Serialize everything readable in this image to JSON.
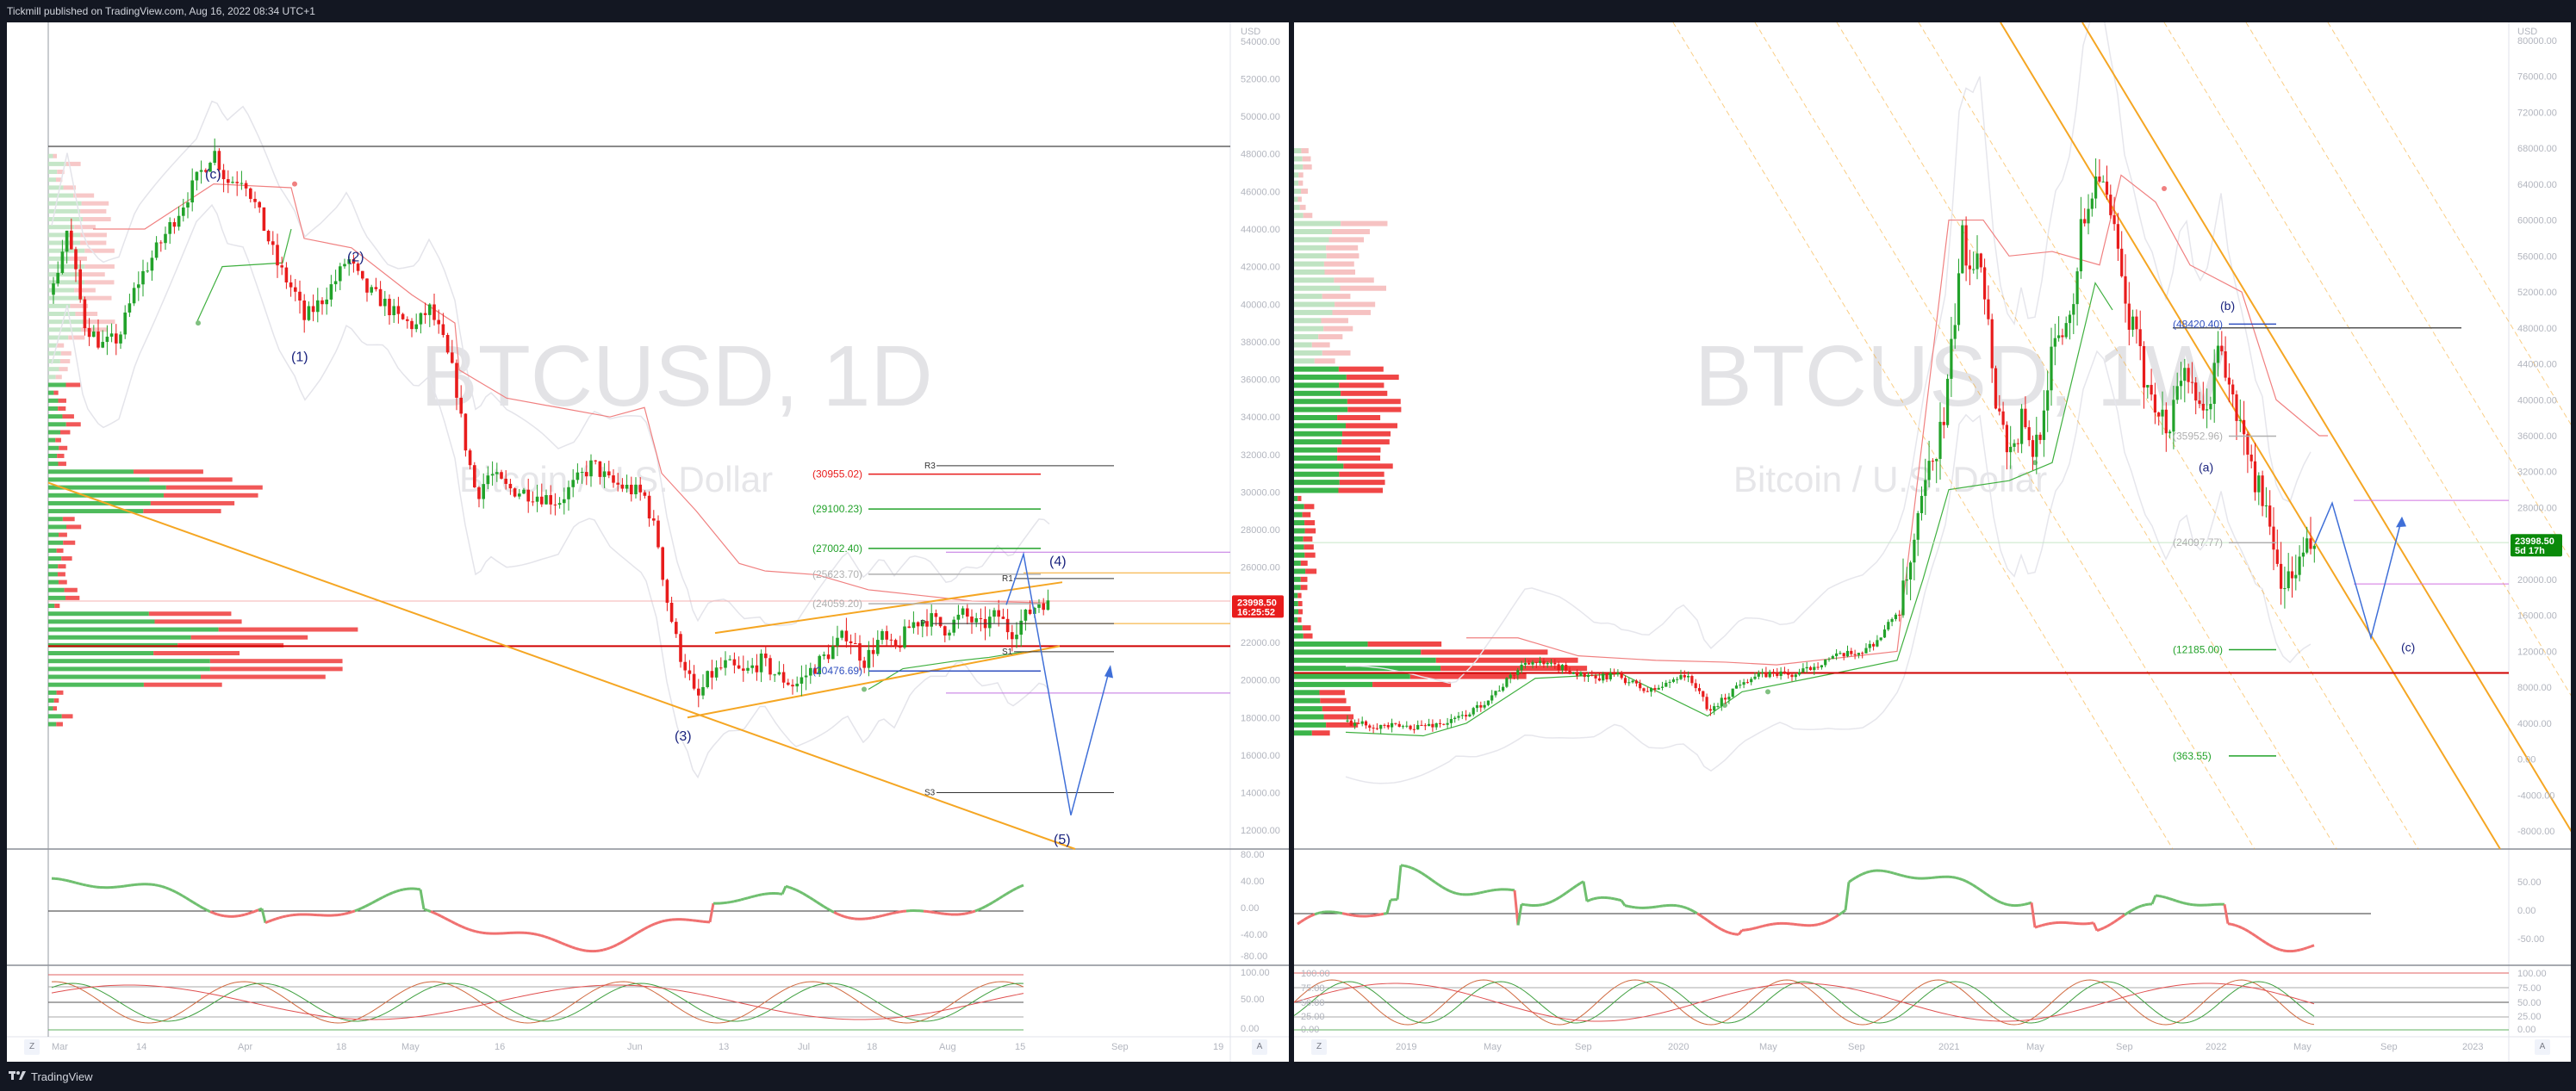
{
  "header": {
    "published": "Tickmill published on TradingView.com, Aug 16, 2022 08:34 UTC+1"
  },
  "footer": {
    "brand": "TradingView"
  },
  "colors": {
    "up": "#22a22a",
    "down": "#e81c1c",
    "wedge": "#f5a623",
    "wave": "#3f6fd8",
    "volume_up": "#3bb44a",
    "volume_down": "#f04646"
  },
  "charts": [
    {
      "symbol": "BTCUSD, 1D",
      "description": "Bitcoin / U.S. Dollar",
      "currency": "USD",
      "last_price": "23998.50",
      "countdown": "16:25:52",
      "y_ticks": [
        "54000.00",
        "52000.00",
        "50000.00",
        "48000.00",
        "46000.00",
        "44000.00",
        "42000.00",
        "40000.00",
        "38000.00",
        "36000.00",
        "34000.00",
        "32000.00",
        "30000.00",
        "28000.00",
        "26000.00",
        "24000.00",
        "22000.00",
        "20000.00",
        "18000.00",
        "16000.00",
        "14000.00",
        "12000.00"
      ],
      "x_ticks": [
        "Mar",
        "14",
        "Apr",
        "18",
        "May",
        "16",
        "Jun",
        "13",
        "Jul",
        "18",
        "Aug",
        "15",
        "Sep",
        "19"
      ],
      "osc1_ticks": [
        "80.00",
        "40.00",
        "0.00",
        "-40.00",
        "-80.00"
      ],
      "osc2_ticks": [
        "100.00",
        "50.00",
        "0.00"
      ],
      "pivots": [
        {
          "label": "(30955.02)",
          "color": "#e81c1c"
        },
        {
          "label": "(29100.23)",
          "color": "#22a22a"
        },
        {
          "label": "(27002.40)",
          "color": "#22a22a"
        },
        {
          "label": "(25623.70)",
          "color": "#b0b0b0"
        },
        {
          "label": "(24059.20)",
          "color": "#b0b0b0"
        },
        {
          "label": "(20476.69)",
          "color": "#3050c0"
        }
      ],
      "pivot_tags": [
        "R3",
        "R1",
        "P",
        "S1",
        "S3"
      ],
      "waves": [
        "(c)",
        "(2)",
        "(1)",
        "(3)",
        "(4)",
        "(5)"
      ],
      "buttons": [
        "Z",
        "A"
      ]
    },
    {
      "symbol": "BTCUSD, 1W",
      "description": "Bitcoin / U.S. Dollar",
      "currency": "USD",
      "last_price": "23998.50",
      "countdown": "5d 17h",
      "y_ticks": [
        "80000.00",
        "76000.00",
        "72000.00",
        "68000.00",
        "64000.00",
        "60000.00",
        "56000.00",
        "52000.00",
        "48000.00",
        "44000.00",
        "40000.00",
        "36000.00",
        "32000.00",
        "28000.00",
        "24000.00",
        "20000.00",
        "16000.00",
        "12000.00",
        "8000.00",
        "4000.00",
        "0.00",
        "-4000.00",
        "-8000.00"
      ],
      "x_ticks": [
        "2019",
        "May",
        "Sep",
        "2020",
        "May",
        "Sep",
        "2021",
        "May",
        "Sep",
        "2022",
        "May",
        "Sep",
        "2023"
      ],
      "osc1_ticks": [
        "50.00",
        "0.00",
        "-50.00"
      ],
      "osc2_ticks": [
        "100.00",
        "75.00",
        "50.00",
        "25.00",
        "0.00"
      ],
      "pivots": [
        {
          "label": "(48420.40)",
          "color": "#3050c0"
        },
        {
          "label": "(35952.96)",
          "color": "#b0b0b0"
        },
        {
          "label": "(24097.77)",
          "color": "#b0b0b0"
        },
        {
          "label": "(12185.00)",
          "color": "#22a22a"
        },
        {
          "label": "(363.55)",
          "color": "#22a22a"
        }
      ],
      "waves": [
        "(b)",
        "(a)",
        "(c)"
      ],
      "buttons": [
        "Z",
        "A"
      ]
    }
  ],
  "chart_data": [
    {
      "type": "candlestick",
      "symbol": "BTCUSD",
      "interval": "1D",
      "ylim": [
        11000,
        55000
      ],
      "last": 23998.5,
      "levels": [
        30955.02,
        29100.23,
        27002.4,
        25623.7,
        24059.2,
        20476.69
      ],
      "key_points": [
        {
          "label": "(c)",
          "x": "Mar 28",
          "y": 48200
        },
        {
          "label": "(1)",
          "x": "Apr 11",
          "y": 39200
        },
        {
          "label": "(2)",
          "x": "Apr 21",
          "y": 42900
        },
        {
          "label": "(3)",
          "x": "Jun 18",
          "y": 17600
        },
        {
          "label": "(4)",
          "x": "Aug 15",
          "y": 25100
        },
        {
          "label": "(5)",
          "x": "Sep 03",
          "y": 12000
        }
      ]
    },
    {
      "type": "candlestick",
      "symbol": "BTCUSD",
      "interval": "1W",
      "ylim": [
        -9000,
        81000
      ],
      "last": 23998.5,
      "levels": [
        48420.4,
        35952.96,
        24097.77,
        12185.0,
        363.55
      ],
      "key_points": [
        {
          "label": "(a)",
          "x": "2022-01",
          "y": 33000
        },
        {
          "label": "(b)",
          "x": "2022-04",
          "y": 47500
        },
        {
          "label": "(c)",
          "x": "2022-10",
          "y": 12000
        }
      ]
    }
  ]
}
